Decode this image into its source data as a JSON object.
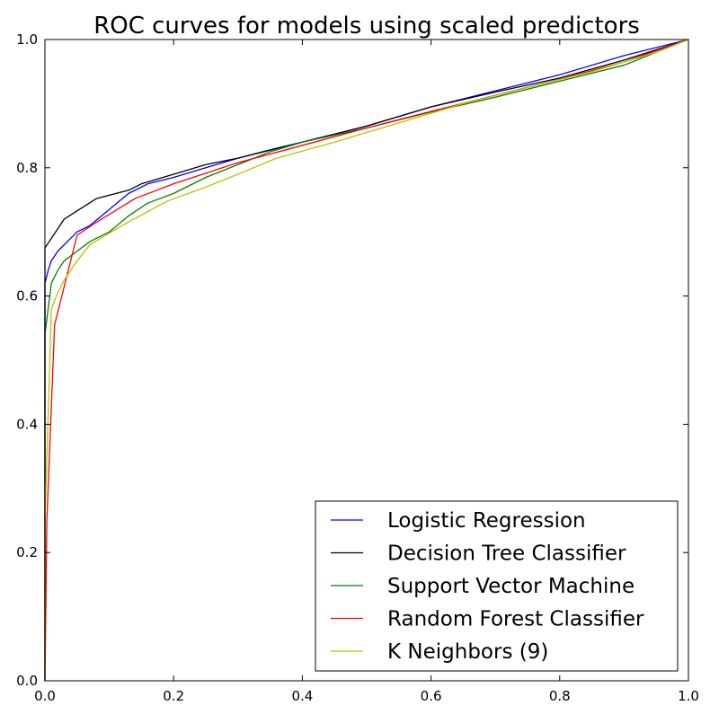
{
  "chart_data": {
    "type": "line",
    "title": "ROC curves for models using scaled predictors",
    "xlabel": "",
    "ylabel": "",
    "xlim": [
      0.0,
      1.0
    ],
    "ylim": [
      0.0,
      1.0
    ],
    "xticks": [
      "0.0",
      "0.2",
      "0.4",
      "0.6",
      "0.8",
      "1.0"
    ],
    "yticks": [
      "0.0",
      "0.2",
      "0.4",
      "0.6",
      "0.8",
      "1.0"
    ],
    "grid": false,
    "legend_position": "lower-right",
    "series": [
      {
        "name": "Logistic Regression",
        "color": "#0000ff",
        "x": [
          0.0,
          0.0,
          0.005,
          0.01,
          0.02,
          0.03,
          0.04,
          0.05,
          0.07,
          0.1,
          0.13,
          0.16,
          0.2,
          0.25,
          0.3,
          0.35,
          0.4,
          0.5,
          0.6,
          0.7,
          0.8,
          0.9,
          1.0
        ],
        "y": [
          0.0,
          0.62,
          0.64,
          0.655,
          0.67,
          0.68,
          0.69,
          0.7,
          0.71,
          0.735,
          0.76,
          0.775,
          0.785,
          0.8,
          0.815,
          0.828,
          0.84,
          0.865,
          0.895,
          0.92,
          0.945,
          0.975,
          1.0
        ]
      },
      {
        "name": "Decision Tree Classifier",
        "color": "#000000",
        "x": [
          0.0,
          0.0,
          0.03,
          0.08,
          0.13,
          0.15,
          0.2,
          0.25,
          0.3,
          0.4,
          0.5,
          0.6,
          0.7,
          0.8,
          0.9,
          1.0
        ],
        "y": [
          0.0,
          0.675,
          0.72,
          0.752,
          0.765,
          0.775,
          0.79,
          0.805,
          0.815,
          0.84,
          0.865,
          0.895,
          0.918,
          0.94,
          0.968,
          1.0
        ]
      },
      {
        "name": "Support Vector Machine",
        "color": "#008000",
        "x": [
          0.0,
          0.0,
          0.005,
          0.01,
          0.02,
          0.03,
          0.05,
          0.07,
          0.1,
          0.13,
          0.16,
          0.2,
          0.25,
          0.3,
          0.35,
          0.4,
          0.5,
          0.6,
          0.7,
          0.8,
          0.9,
          1.0
        ],
        "y": [
          0.0,
          0.54,
          0.58,
          0.62,
          0.64,
          0.655,
          0.67,
          0.685,
          0.7,
          0.725,
          0.745,
          0.76,
          0.785,
          0.805,
          0.825,
          0.84,
          0.862,
          0.887,
          0.91,
          0.935,
          0.96,
          1.0
        ]
      },
      {
        "name": "Random Forest Classifier",
        "color": "#ff0000",
        "x": [
          0.0,
          0.003,
          0.015,
          0.05,
          0.08,
          0.14,
          0.2,
          0.3,
          0.4,
          0.5,
          0.6,
          0.7,
          0.8,
          0.9,
          1.0
        ],
        "y": [
          0.0,
          0.25,
          0.555,
          0.695,
          0.715,
          0.752,
          0.775,
          0.808,
          0.835,
          0.862,
          0.888,
          0.913,
          0.938,
          0.965,
          1.0
        ]
      },
      {
        "name": "K Neighbors (9)",
        "color": "#bfbf00",
        "x": [
          0.0,
          0.0,
          0.01,
          0.02,
          0.03,
          0.05,
          0.07,
          0.12,
          0.19,
          0.25,
          0.3,
          0.36,
          0.45,
          0.55,
          0.65,
          0.75,
          0.85,
          0.95,
          1.0
        ],
        "y": [
          0.0,
          0.25,
          0.58,
          0.605,
          0.625,
          0.655,
          0.68,
          0.71,
          0.748,
          0.77,
          0.79,
          0.815,
          0.84,
          0.87,
          0.9,
          0.925,
          0.95,
          0.98,
          1.0
        ]
      }
    ]
  }
}
